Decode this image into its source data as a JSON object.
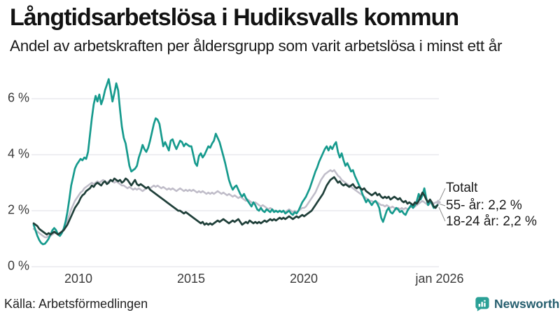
{
  "chart_data": {
    "type": "line",
    "title": "Långtidsarbetslösa i Hudiksvalls kommun",
    "subtitle": "Andel av arbetskraften per åldersgrupp som varit arbetslösa i minst ett år",
    "unit": "%",
    "x_start_year": 2008,
    "points_per_year": 12,
    "xlim_years": [
      2008,
      2026.08
    ],
    "ylim": [
      0,
      7
    ],
    "grid": true,
    "grid_color": "#e4e3ea",
    "yticks": [
      {
        "value": 0,
        "label": "0 %"
      },
      {
        "value": 2,
        "label": "2 %"
      },
      {
        "value": 4,
        "label": "4 %"
      },
      {
        "value": 6,
        "label": "6 %"
      }
    ],
    "xticks": [
      {
        "year": 2010,
        "label": "2010"
      },
      {
        "year": 2015,
        "label": "2015"
      },
      {
        "year": 2020,
        "label": "2020"
      },
      {
        "year": 2026,
        "label": "jan 2026"
      }
    ],
    "series": [
      {
        "name": "Totalt",
        "color": "#c0bdc9",
        "width": 2.5,
        "end_marker": true,
        "values": [
          1.35,
          1.3,
          1.25,
          1.2,
          1.15,
          1.1,
          1.05,
          1.05,
          1.1,
          1.1,
          1.15,
          1.2,
          1.2,
          1.15,
          1.2,
          1.25,
          1.35,
          1.5,
          1.65,
          1.85,
          2.05,
          2.2,
          2.35,
          2.45,
          2.55,
          2.65,
          2.7,
          2.8,
          2.85,
          2.9,
          2.95,
          3.0,
          2.95,
          3.0,
          3.05,
          3.0,
          3.05,
          3.1,
          3.05,
          3.0,
          3.05,
          3.1,
          3.05,
          3.0,
          3.05,
          3.0,
          2.95,
          2.9,
          2.9,
          2.85,
          2.8,
          2.85,
          2.8,
          2.75,
          2.8,
          2.75,
          2.8,
          2.75,
          2.7,
          2.75,
          2.8,
          2.85,
          2.8,
          2.85,
          2.9,
          2.85,
          2.9,
          2.85,
          2.8,
          2.85,
          2.8,
          2.75,
          2.8,
          2.75,
          2.8,
          2.75,
          2.7,
          2.75,
          2.8,
          2.75,
          2.7,
          2.75,
          2.7,
          2.75,
          2.7,
          2.75,
          2.7,
          2.65,
          2.7,
          2.65,
          2.7,
          2.65,
          2.6,
          2.65,
          2.6,
          2.65,
          2.6,
          2.65,
          2.7,
          2.65,
          2.6,
          2.65,
          2.6,
          2.55,
          2.6,
          2.55,
          2.5,
          2.55,
          2.5,
          2.45,
          2.5,
          2.45,
          2.4,
          2.35,
          2.4,
          2.35,
          2.3,
          2.25,
          2.3,
          2.25,
          2.2,
          2.15,
          2.2,
          2.15,
          2.1,
          2.05,
          2.1,
          2.05,
          2.0,
          2.0,
          1.95,
          2.0,
          1.95,
          2.0,
          1.95,
          2.0,
          2.05,
          2.0,
          1.95,
          2.0,
          1.95,
          2.0,
          2.05,
          2.1,
          2.1,
          2.15,
          2.25,
          2.35,
          2.45,
          2.55,
          2.65,
          2.8,
          2.95,
          3.1,
          3.2,
          3.3,
          3.35,
          3.4,
          3.45,
          3.4,
          3.45,
          3.35,
          3.25,
          3.2,
          3.1,
          3.05,
          3.0,
          2.95,
          2.9,
          2.85,
          2.8,
          2.75,
          2.7,
          2.65,
          2.6,
          2.55,
          2.5,
          2.45,
          2.4,
          2.35,
          2.35,
          2.3,
          2.35,
          2.3,
          2.25,
          2.2,
          2.2,
          2.15,
          2.2,
          2.15,
          2.1,
          2.15,
          2.1,
          2.05,
          2.1,
          2.05,
          2.1,
          2.05,
          2.1,
          2.05,
          2.1,
          2.15,
          2.1,
          2.15,
          2.2,
          2.25,
          2.3,
          2.35,
          2.3,
          2.25,
          2.2,
          2.25,
          2.3,
          2.25,
          2.3,
          2.3
        ]
      },
      {
        "name": "18-24 år",
        "color": "#169a8d",
        "width": 2.7,
        "end_marker": false,
        "values": [
          1.5,
          1.3,
          1.1,
          0.95,
          0.85,
          0.8,
          0.82,
          0.9,
          1.0,
          1.15,
          1.3,
          1.38,
          1.3,
          1.15,
          1.1,
          1.2,
          1.35,
          1.6,
          1.95,
          2.4,
          2.9,
          3.2,
          3.5,
          3.65,
          3.75,
          3.85,
          3.8,
          3.9,
          3.85,
          4.1,
          4.7,
          5.3,
          5.8,
          6.1,
          5.9,
          6.15,
          5.8,
          6.0,
          6.3,
          6.5,
          6.7,
          6.3,
          5.9,
          6.2,
          6.55,
          6.3,
          5.6,
          5.0,
          4.6,
          4.4,
          4.0,
          3.6,
          3.4,
          3.45,
          3.5,
          3.6,
          3.9,
          4.1,
          4.35,
          4.2,
          4.1,
          4.25,
          4.5,
          4.8,
          5.1,
          5.3,
          5.25,
          5.1,
          4.7,
          4.3,
          4.45,
          4.3,
          4.15,
          4.5,
          4.55,
          4.35,
          4.2,
          4.35,
          4.5,
          4.45,
          4.3,
          4.4,
          4.35,
          4.3,
          4.3,
          4.0,
          3.7,
          3.6,
          3.95,
          4.05,
          3.9,
          4.0,
          4.15,
          4.3,
          4.25,
          4.4,
          4.5,
          4.75,
          4.6,
          4.45,
          4.2,
          3.95,
          3.7,
          3.4,
          3.1,
          2.9,
          2.75,
          2.85,
          2.9,
          2.75,
          2.6,
          2.5,
          2.6,
          2.45,
          2.35,
          2.25,
          2.15,
          2.3,
          2.2,
          2.05,
          2.0,
          2.1,
          2.0,
          1.95,
          2.05,
          2.0,
          1.95,
          2.05,
          1.95,
          2.0,
          1.95,
          2.0,
          1.95,
          2.0,
          1.9,
          1.95,
          2.0,
          1.9,
          1.85,
          1.95,
          1.9,
          2.0,
          2.15,
          2.3,
          2.4,
          2.5,
          2.65,
          2.8,
          3.0,
          3.2,
          3.4,
          3.55,
          3.75,
          3.9,
          4.05,
          4.2,
          4.3,
          4.15,
          4.3,
          4.2,
          4.35,
          4.45,
          4.1,
          3.9,
          4.05,
          3.8,
          3.6,
          3.7,
          3.55,
          3.4,
          3.45,
          3.25,
          3.1,
          2.95,
          2.8,
          2.6,
          2.45,
          2.3,
          2.4,
          2.3,
          2.2,
          2.3,
          2.35,
          2.25,
          2.1,
          1.75,
          1.6,
          1.8,
          2.0,
          2.1,
          1.95,
          1.9,
          2.0,
          2.1,
          2.05,
          1.95,
          2.0,
          1.9,
          1.85,
          2.0,
          2.1,
          2.2,
          2.1,
          2.2,
          2.35,
          2.6,
          2.4,
          2.55,
          2.8,
          2.45,
          2.2,
          2.35,
          2.25,
          2.1,
          2.15,
          2.2
        ]
      },
      {
        "name": "55- år",
        "color": "#20403a",
        "width": 2.7,
        "end_marker": false,
        "values": [
          1.55,
          1.5,
          1.45,
          1.35,
          1.3,
          1.25,
          1.2,
          1.15,
          1.2,
          1.15,
          1.2,
          1.25,
          1.2,
          1.15,
          1.2,
          1.25,
          1.3,
          1.4,
          1.5,
          1.65,
          1.8,
          1.95,
          2.1,
          2.2,
          2.3,
          2.45,
          2.55,
          2.6,
          2.7,
          2.75,
          2.8,
          2.9,
          2.85,
          2.95,
          3.0,
          2.95,
          2.9,
          3.0,
          3.05,
          2.95,
          3.0,
          3.1,
          3.05,
          3.15,
          3.1,
          3.05,
          3.1,
          3.0,
          3.05,
          3.15,
          3.1,
          3.0,
          2.9,
          3.0,
          3.1,
          2.95,
          2.9,
          2.95,
          2.9,
          2.85,
          2.8,
          2.85,
          2.75,
          2.7,
          2.65,
          2.6,
          2.55,
          2.5,
          2.45,
          2.4,
          2.35,
          2.3,
          2.25,
          2.2,
          2.15,
          2.1,
          2.05,
          2.0,
          2.0,
          1.95,
          1.9,
          1.95,
          1.9,
          1.85,
          1.8,
          1.75,
          1.7,
          1.65,
          1.6,
          1.55,
          1.6,
          1.5,
          1.55,
          1.5,
          1.55,
          1.5,
          1.55,
          1.6,
          1.65,
          1.6,
          1.65,
          1.7,
          1.65,
          1.6,
          1.55,
          1.6,
          1.65,
          1.6,
          1.65,
          1.7,
          1.6,
          1.5,
          1.55,
          1.6,
          1.55,
          1.65,
          1.6,
          1.55,
          1.6,
          1.55,
          1.6,
          1.55,
          1.6,
          1.65,
          1.6,
          1.65,
          1.7,
          1.65,
          1.7,
          1.65,
          1.7,
          1.75,
          1.7,
          1.75,
          1.7,
          1.75,
          1.8,
          1.75,
          1.7,
          1.75,
          1.8,
          1.75,
          1.8,
          1.85,
          1.8,
          1.85,
          1.9,
          1.95,
          2.0,
          2.1,
          2.2,
          2.3,
          2.4,
          2.5,
          2.6,
          2.75,
          2.9,
          3.0,
          3.1,
          3.15,
          3.2,
          3.1,
          3.0,
          3.05,
          2.95,
          2.9,
          2.95,
          2.9,
          2.85,
          2.9,
          2.95,
          2.85,
          2.8,
          2.85,
          2.8,
          2.75,
          2.8,
          2.7,
          2.65,
          2.6,
          2.55,
          2.6,
          2.65,
          2.55,
          2.6,
          2.5,
          2.45,
          2.5,
          2.45,
          2.5,
          2.4,
          2.45,
          2.5,
          2.45,
          2.4,
          2.45,
          2.35,
          2.3,
          2.35,
          2.25,
          2.3,
          2.25,
          2.2,
          2.3,
          2.25,
          2.35,
          2.5,
          2.65,
          2.55,
          2.4,
          2.3,
          2.4,
          2.3,
          2.15,
          2.1,
          2.2
        ]
      }
    ],
    "annotations": [
      {
        "label": "Totalt",
        "series": "Totalt"
      },
      {
        "label": "55- år: 2,2 %",
        "series": "55- år"
      },
      {
        "label": "18-24 år: 2,2 %",
        "series": "18-24 år"
      }
    ],
    "source": "Källa: Arbetsförmedlingen"
  },
  "footer": {
    "brand": "Newsworthy",
    "brand_icon": "bar-chart-speech-bubble",
    "brand_accent_color": "#2aa096",
    "brand_text_color": "#255e6e"
  }
}
